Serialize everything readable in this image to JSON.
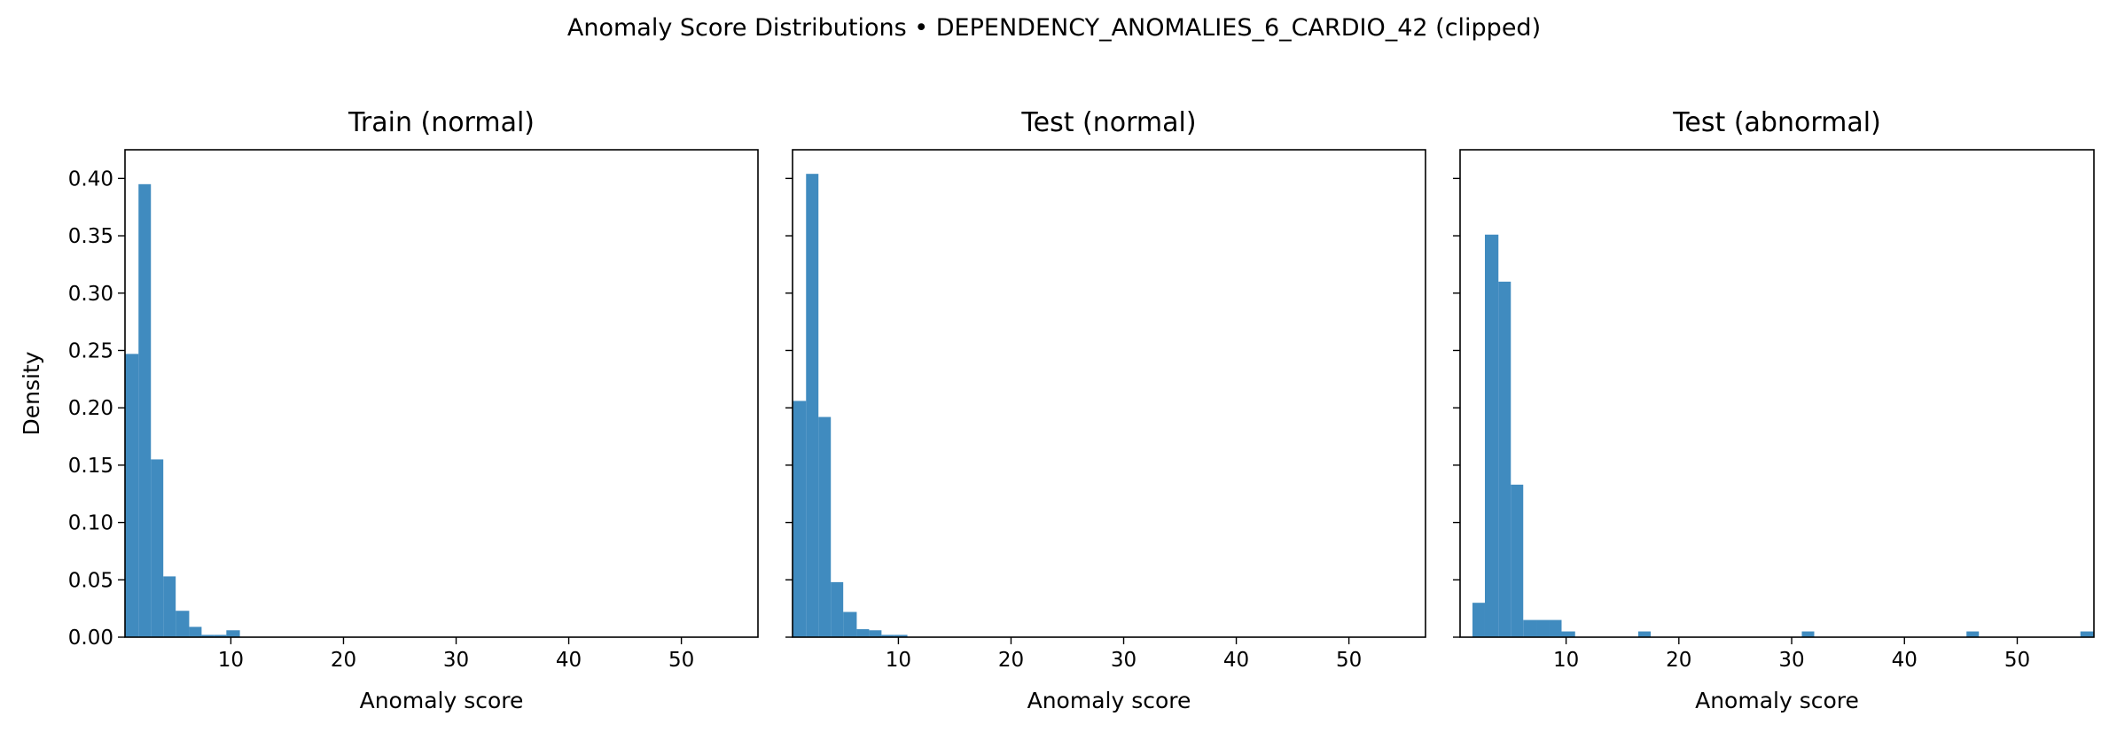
{
  "figure": {
    "suptitle": "Anomaly Score Distributions • DEPENDENCY_ANOMALIES_6_CARDIO_42 (clipped)",
    "bar_color": "#1f77b4"
  },
  "chart_data": [
    {
      "type": "bar",
      "title": "Train (normal)",
      "xlabel": "Anomaly score",
      "ylabel": "Density",
      "xlim": [
        0.6,
        56.8
      ],
      "ylim": [
        0,
        0.425
      ],
      "xticks": [
        10,
        20,
        30,
        40,
        50
      ],
      "yticks": [
        0.0,
        0.05,
        0.1,
        0.15,
        0.2,
        0.25,
        0.3,
        0.35,
        0.4
      ],
      "bins": [
        {
          "x0": 0.6,
          "x1": 1.8,
          "value": 0.247
        },
        {
          "x0": 1.8,
          "x1": 2.9,
          "value": 0.395
        },
        {
          "x0": 2.9,
          "x1": 4.0,
          "value": 0.155
        },
        {
          "x0": 4.0,
          "x1": 5.1,
          "value": 0.053
        },
        {
          "x0": 5.1,
          "x1": 6.3,
          "value": 0.023
        },
        {
          "x0": 6.3,
          "x1": 7.4,
          "value": 0.009
        },
        {
          "x0": 7.4,
          "x1": 8.5,
          "value": 0.002
        },
        {
          "x0": 8.5,
          "x1": 9.6,
          "value": 0.002
        },
        {
          "x0": 9.6,
          "x1": 10.8,
          "value": 0.006
        }
      ]
    },
    {
      "type": "bar",
      "title": "Test (normal)",
      "xlabel": "Anomaly score",
      "ylabel": "",
      "xlim": [
        0.6,
        56.8
      ],
      "ylim": [
        0,
        0.425
      ],
      "xticks": [
        10,
        20,
        30,
        40,
        50
      ],
      "yticks": [
        0.0,
        0.05,
        0.1,
        0.15,
        0.2,
        0.25,
        0.3,
        0.35,
        0.4
      ],
      "bins": [
        {
          "x0": 0.6,
          "x1": 1.8,
          "value": 0.206
        },
        {
          "x0": 1.8,
          "x1": 2.9,
          "value": 0.404
        },
        {
          "x0": 2.9,
          "x1": 4.0,
          "value": 0.192
        },
        {
          "x0": 4.0,
          "x1": 5.1,
          "value": 0.048
        },
        {
          "x0": 5.1,
          "x1": 6.3,
          "value": 0.022
        },
        {
          "x0": 6.3,
          "x1": 7.4,
          "value": 0.007
        },
        {
          "x0": 7.4,
          "x1": 8.5,
          "value": 0.006
        },
        {
          "x0": 8.5,
          "x1": 9.6,
          "value": 0.002
        },
        {
          "x0": 9.6,
          "x1": 10.8,
          "value": 0.002
        }
      ]
    },
    {
      "type": "bar",
      "title": "Test (abnormal)",
      "xlabel": "Anomaly score",
      "ylabel": "",
      "xlim": [
        0.6,
        56.8
      ],
      "ylim": [
        0,
        0.425
      ],
      "xticks": [
        10,
        20,
        30,
        40,
        50
      ],
      "yticks": [
        0.0,
        0.05,
        0.1,
        0.15,
        0.2,
        0.25,
        0.3,
        0.35,
        0.4
      ],
      "bins": [
        {
          "x0": 1.7,
          "x1": 2.8,
          "value": 0.03
        },
        {
          "x0": 2.8,
          "x1": 4.0,
          "value": 0.351
        },
        {
          "x0": 4.0,
          "x1": 5.1,
          "value": 0.31
        },
        {
          "x0": 5.1,
          "x1": 6.2,
          "value": 0.133
        },
        {
          "x0": 6.2,
          "x1": 7.4,
          "value": 0.015
        },
        {
          "x0": 7.4,
          "x1": 8.5,
          "value": 0.015
        },
        {
          "x0": 8.5,
          "x1": 9.6,
          "value": 0.015
        },
        {
          "x0": 9.6,
          "x1": 10.8,
          "value": 0.005
        },
        {
          "x0": 16.4,
          "x1": 17.5,
          "value": 0.005
        },
        {
          "x0": 30.9,
          "x1": 32.0,
          "value": 0.005
        },
        {
          "x0": 45.5,
          "x1": 46.6,
          "value": 0.005
        },
        {
          "x0": 55.6,
          "x1": 56.8,
          "value": 0.005
        }
      ]
    }
  ]
}
